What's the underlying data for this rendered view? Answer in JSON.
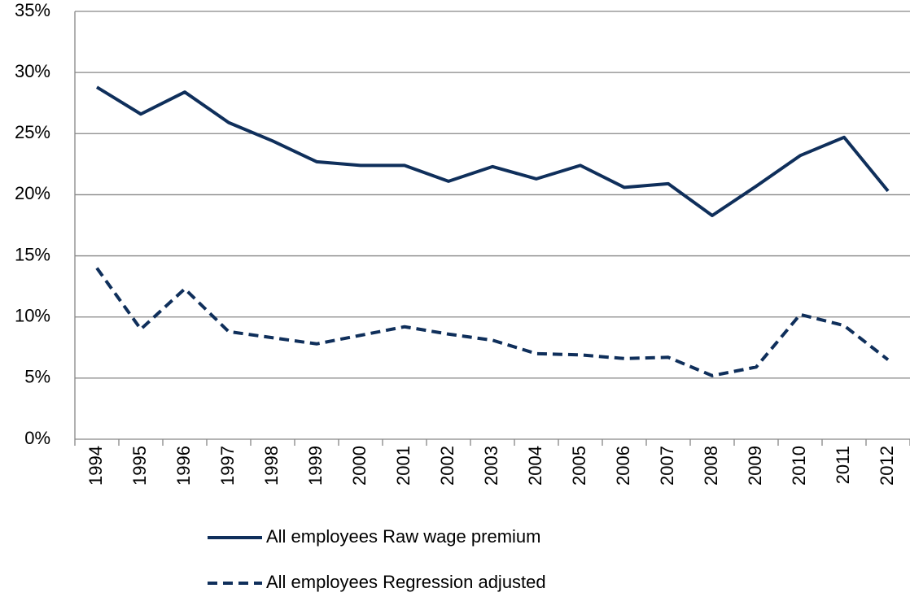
{
  "chart_data": {
    "type": "line",
    "categories": [
      "1994",
      "1995",
      "1996",
      "1997",
      "1998",
      "1999",
      "2000",
      "2001",
      "2002",
      "2003",
      "2004",
      "2005",
      "2006",
      "2007",
      "2008",
      "2009",
      "2010",
      "2011",
      "2012"
    ],
    "series": [
      {
        "name": "All employees Raw wage premium",
        "color": "#0f2f5b",
        "dash": "solid",
        "values": [
          28.8,
          26.6,
          28.4,
          25.9,
          24.4,
          22.7,
          22.4,
          22.4,
          21.1,
          22.3,
          21.3,
          22.4,
          20.6,
          20.9,
          18.3,
          20.7,
          23.2,
          24.7,
          20.3
        ]
      },
      {
        "name": "All employees Regression adjusted",
        "color": "#0f2f5b",
        "dash": "dashed",
        "values": [
          14.0,
          9.0,
          12.3,
          8.8,
          8.3,
          7.8,
          8.5,
          9.2,
          8.6,
          8.1,
          7.0,
          6.9,
          6.6,
          6.7,
          5.2,
          5.9,
          10.2,
          9.3,
          6.5
        ]
      }
    ],
    "ylim": [
      0,
      35
    ],
    "yticks": [
      {
        "value": 0,
        "label": "0%"
      },
      {
        "value": 5,
        "label": "5%"
      },
      {
        "value": 10,
        "label": "10%"
      },
      {
        "value": 15,
        "label": "15%"
      },
      {
        "value": 20,
        "label": "20%"
      },
      {
        "value": 25,
        "label": "25%"
      },
      {
        "value": 30,
        "label": "30%"
      },
      {
        "value": 35,
        "label": "35%"
      }
    ],
    "grid": true,
    "legend": "bottom"
  }
}
